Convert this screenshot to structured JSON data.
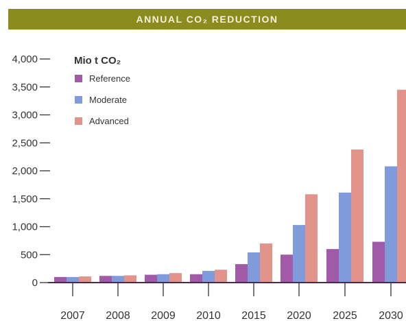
{
  "header": {
    "title": "ANNUAL CO₂ REDUCTION"
  },
  "chart_data": {
    "type": "bar",
    "title": "ANNUAL CO₂ REDUCTION",
    "ylabel": "Mio t CO₂",
    "xlabel": "",
    "categories": [
      "2007",
      "2008",
      "2009",
      "2010",
      "2015",
      "2020",
      "2025",
      "2030"
    ],
    "series": [
      {
        "name": "Reference",
        "color": "#a05aa8",
        "values": [
          100,
          120,
          140,
          150,
          330,
          500,
          600,
          730
        ]
      },
      {
        "name": "Moderate",
        "color": "#7f9bdc",
        "values": [
          100,
          120,
          150,
          210,
          540,
          1030,
          1610,
          2080
        ]
      },
      {
        "name": "Advanced",
        "color": "#e3948a",
        "values": [
          110,
          130,
          170,
          230,
          700,
          1580,
          2380,
          3450
        ]
      }
    ],
    "ylim": [
      0,
      4000
    ],
    "yticks": [
      "0",
      "500",
      "1,000",
      "1,500",
      "2,000",
      "2,500",
      "3,000",
      "3,500",
      "4,000"
    ],
    "legend_position": "top-left",
    "grid": false
  }
}
